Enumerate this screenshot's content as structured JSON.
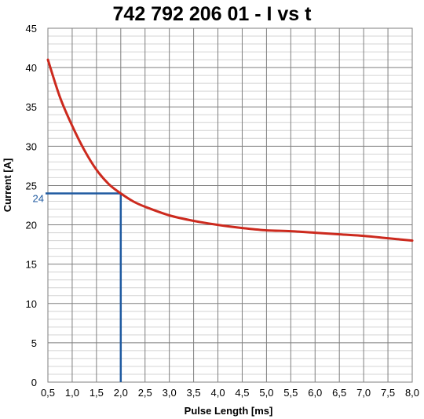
{
  "chart_data": {
    "type": "line",
    "title": "742 792 206 01  -  I vs t",
    "xlabel": "Pulse Length [ms]",
    "ylabel": "Current [A]",
    "xlim": [
      0.5,
      8.0
    ],
    "ylim": [
      0,
      45
    ],
    "x_ticks": [
      "0,5",
      "1,0",
      "1,5",
      "2,0",
      "2,5",
      "3,0",
      "3,5",
      "4,0",
      "4,5",
      "5,0",
      "5,5",
      "6,0",
      "6,5",
      "7,0",
      "7,5",
      "8,0"
    ],
    "y_ticks": [
      "0",
      "5",
      "10",
      "15",
      "20",
      "25",
      "30",
      "35",
      "40",
      "45"
    ],
    "x_tick_values": [
      0.5,
      1.0,
      1.5,
      2.0,
      2.5,
      3.0,
      3.5,
      4.0,
      4.5,
      5.0,
      5.5,
      6.0,
      6.5,
      7.0,
      7.5,
      8.0
    ],
    "y_tick_values": [
      0,
      5,
      10,
      15,
      20,
      25,
      30,
      35,
      40,
      45
    ],
    "grid": true,
    "series": [
      {
        "color": "#cc2a1e",
        "x": [
          0.5,
          0.75,
          1.0,
          1.25,
          1.5,
          1.75,
          2.0,
          2.25,
          2.5,
          3.0,
          3.5,
          4.0,
          4.5,
          5.0,
          5.5,
          6.0,
          6.5,
          7.0,
          7.5,
          8.0
        ],
        "y": [
          41.0,
          36.2,
          32.6,
          29.5,
          27.0,
          25.2,
          24.0,
          23.0,
          22.3,
          21.2,
          20.5,
          20.0,
          19.6,
          19.3,
          19.2,
          19.0,
          18.8,
          18.6,
          18.3,
          18.0
        ]
      }
    ],
    "annotation": {
      "x": 2.0,
      "y": 24,
      "label": "24",
      "color": "#1f5aa0"
    }
  }
}
